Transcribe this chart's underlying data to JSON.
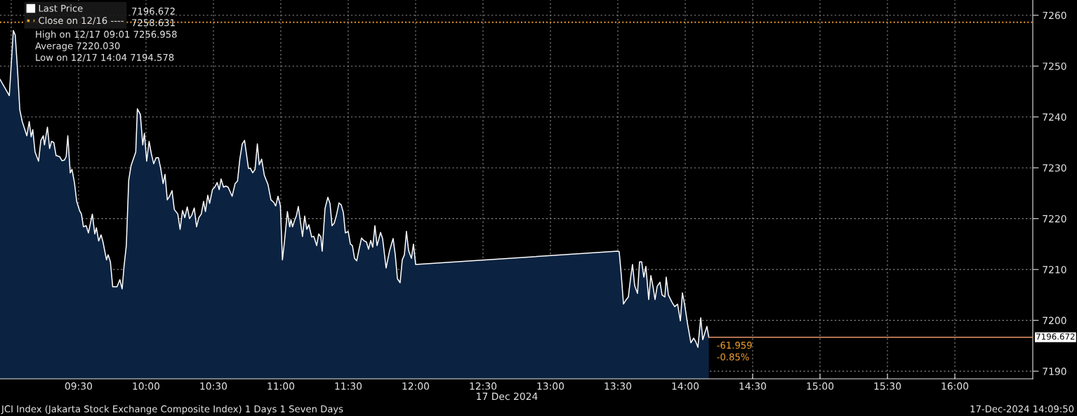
{
  "chart_data": {
    "type": "area",
    "xlabel": "17 Dec 2024",
    "x": [
      8.917,
      8.986,
      9.016,
      9.03,
      9.047,
      9.064,
      9.082,
      9.116,
      9.134,
      9.148,
      9.16,
      9.177,
      9.203,
      9.22,
      9.238,
      9.247,
      9.269,
      9.285,
      9.299,
      9.316,
      9.333,
      9.359,
      9.377,
      9.394,
      9.408,
      9.42,
      9.438,
      9.451,
      9.469,
      9.486,
      9.507,
      9.521,
      9.536,
      9.556,
      9.573,
      9.602,
      9.62,
      9.632,
      9.649,
      9.667,
      9.681,
      9.707,
      9.719,
      9.736,
      9.753,
      9.785,
      9.806,
      9.823,
      9.837,
      9.854,
      9.872,
      9.889,
      9.906,
      9.924,
      9.936,
      9.958,
      9.976,
      9.988,
      10.005,
      10.023,
      10.04,
      10.057,
      10.075,
      10.092,
      10.109,
      10.127,
      10.141,
      10.158,
      10.175,
      10.193,
      10.21,
      10.236,
      10.253,
      10.271,
      10.288,
      10.306,
      10.323,
      10.34,
      10.358,
      10.375,
      10.392,
      10.41,
      10.427,
      10.441,
      10.458,
      10.472,
      10.493,
      10.51,
      10.528,
      10.543,
      10.557,
      10.575,
      10.592,
      10.609,
      10.639,
      10.661,
      10.679,
      10.696,
      10.714,
      10.731,
      10.76,
      10.774,
      10.792,
      10.809,
      10.826,
      10.84,
      10.858,
      10.878,
      10.905,
      10.927,
      10.948,
      10.962,
      10.979,
      10.997,
      11.012,
      11.026,
      11.049,
      11.066,
      11.075,
      11.087,
      11.104,
      11.115,
      11.13,
      11.146,
      11.161,
      11.177,
      11.193,
      11.208,
      11.229,
      11.245,
      11.266,
      11.281,
      11.297,
      11.307,
      11.328,
      11.349,
      11.365,
      11.38,
      11.396,
      11.411,
      11.432,
      11.448,
      11.464,
      11.479,
      11.5,
      11.516,
      11.531,
      11.547,
      11.563,
      11.583,
      11.599,
      11.615,
      11.635,
      11.651,
      11.667,
      11.682,
      11.698,
      11.714,
      11.74,
      11.755,
      11.781,
      11.807,
      11.833,
      11.849,
      11.865,
      11.885,
      11.901,
      11.917,
      11.932,
      11.948,
      11.969,
      11.984,
      12.0,
      13.5,
      13.51,
      13.526,
      13.542,
      13.563,
      13.578,
      13.594,
      13.609,
      13.625,
      13.646,
      13.661,
      13.677,
      13.693,
      13.708,
      13.729,
      13.745,
      13.76,
      13.776,
      13.792,
      13.813,
      13.828,
      13.849,
      13.859,
      13.875,
      13.901,
      13.922,
      13.943,
      13.964,
      13.979,
      13.995,
      14.016,
      14.042,
      14.063,
      14.078,
      14.094,
      14.115,
      14.13,
      14.161,
      14.175
    ],
    "series": [
      {
        "name": "Last Price",
        "color": "#0b2341",
        "values": [
          7247.4,
          7244.2,
          7257.0,
          7256.1,
          7249.2,
          7241.4,
          7239.1,
          7236.3,
          7239.1,
          7236.1,
          7237.5,
          7233.1,
          7231.3,
          7235.4,
          7236.3,
          7234.5,
          7238.0,
          7233.8,
          7235.2,
          7235.0,
          7232.4,
          7232.2,
          7231.4,
          7231.5,
          7232.2,
          7236.3,
          7229.0,
          7229.7,
          7227.1,
          7223.4,
          7221.6,
          7220.9,
          7218.4,
          7218.6,
          7217.2,
          7220.9,
          7217.0,
          7218.2,
          7215.6,
          7216.8,
          7215.4,
          7211.9,
          7212.9,
          7211.5,
          7206.6,
          7206.6,
          7208.0,
          7206.2,
          7210.6,
          7214.7,
          7227.6,
          7230.4,
          7231.7,
          7233.1,
          7241.6,
          7240.5,
          7234.5,
          7236.8,
          7231.3,
          7235.2,
          7232.7,
          7230.8,
          7232.0,
          7232.0,
          7229.9,
          7226.9,
          7228.7,
          7223.7,
          7224.4,
          7225.5,
          7221.8,
          7220.9,
          7217.9,
          7221.6,
          7220.2,
          7222.3,
          7220.0,
          7220.7,
          7222.1,
          7218.4,
          7220.2,
          7220.9,
          7223.4,
          7221.4,
          7224.6,
          7223.0,
          7225.7,
          7226.2,
          7227.1,
          7225.7,
          7227.8,
          7226.2,
          7226.4,
          7226.2,
          7224.4,
          7226.9,
          7227.4,
          7231.7,
          7234.7,
          7235.4,
          7229.9,
          7229.9,
          7229.0,
          7229.7,
          7234.7,
          7230.6,
          7231.7,
          7228.5,
          7226.7,
          7223.7,
          7223.2,
          7222.5,
          7224.4,
          7222.5,
          7211.9,
          7215.2,
          7221.4,
          7218.4,
          7219.8,
          7218.4,
          7219.8,
          7220.5,
          7222.4,
          7219.3,
          7216.5,
          7220.5,
          7217.9,
          7218.8,
          7216.4,
          7216.5,
          7214.7,
          7217.0,
          7216.4,
          7213.6,
          7222.0,
          7224.2,
          7223.0,
          7218.6,
          7219.1,
          7220.5,
          7223.1,
          7222.7,
          7221.2,
          7217.2,
          7217.5,
          7215.0,
          7214.7,
          7212.2,
          7211.7,
          7214.3,
          7216.2,
          7215.7,
          7215.4,
          7214.0,
          7215.7,
          7214.4,
          7218.6,
          7214.7,
          7217.3,
          7216.1,
          7210.3,
          7213.7,
          7216.1,
          7212.9,
          7208.2,
          7207.4,
          7211.9,
          7212.9,
          7217.5,
          7213.7,
          7212.2,
          7215.0,
          7211.0,
          7213.6,
          7213.5,
          7208.8,
          7203.2,
          7204.1,
          7204.6,
          7208.2,
          7211.0,
          7206.8,
          7205.3,
          7211.5,
          7211.5,
          7208.5,
          7210.6,
          7204.1,
          7208.8,
          7206.8,
          7204.1,
          7206.7,
          7207.5,
          7205.0,
          7204.6,
          7208.5,
          7205.0,
          7203.6,
          7202.7,
          7203.2,
          7199.9,
          7205.4,
          7203.2,
          7199.5,
          7195.6,
          7196.5,
          7195.8,
          7194.7,
          7200.5,
          7196.2,
          7198.8,
          7196.672
        ]
      }
    ],
    "xlim": [
      8.917,
      16.578
    ],
    "xticks": [
      {
        "value": 9,
        "label": null
      },
      {
        "value": 9.5,
        "label": "09:30"
      },
      {
        "value": 10,
        "label": "10:00"
      },
      {
        "value": 10.5,
        "label": "10:30"
      },
      {
        "value": 11,
        "label": "11:00"
      },
      {
        "value": 11.5,
        "label": "11:30"
      },
      {
        "value": 12,
        "label": "12:00"
      },
      {
        "value": 12.5,
        "label": "12:30"
      },
      {
        "value": 13,
        "label": "13:00"
      },
      {
        "value": 13.5,
        "label": "13:30"
      },
      {
        "value": 14,
        "label": "14:00"
      },
      {
        "value": 14.5,
        "label": "14:30"
      },
      {
        "value": 15,
        "label": "15:00"
      },
      {
        "value": 15.5,
        "label": "15:30"
      },
      {
        "value": 16,
        "label": "16:00"
      }
    ],
    "ylim": [
      7188.5,
      7263.0
    ],
    "yticks": [
      7190,
      7200,
      7210,
      7220,
      7230,
      7240,
      7250,
      7260
    ],
    "grid": true,
    "legend": "top left",
    "line_style": "solid",
    "ref_lines": [
      {
        "axis": "y",
        "value": 7258.631,
        "label": "Close on 12/16 ----",
        "color": "#f0a030",
        "line_style": "dotted"
      },
      {
        "axis": "y",
        "value": 7196.672,
        "label": "7196.672",
        "color": "#e8956b",
        "line_style": "solid"
      }
    ],
    "annotations": [
      "7196.672",
      "7258.631",
      "High on 12/17 09:01 7256.958",
      "Average 7220.030",
      "Low on 12/17 14:04 7194.578",
      "-61.959",
      "-0.85%",
      "JCI Index (Jakarta Stock Exchange Composite Index) 1 Days 1 Seven Days",
      "17-Dec-2024 14:09:50"
    ]
  }
}
